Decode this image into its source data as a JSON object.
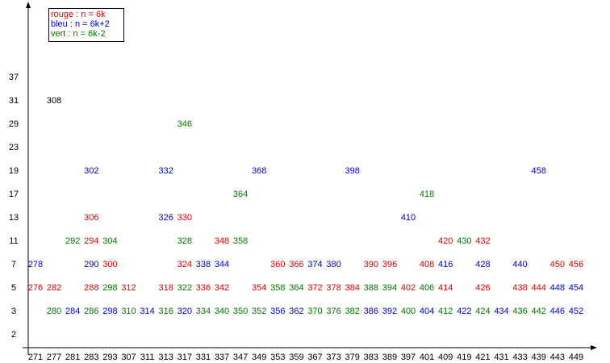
{
  "legend": [
    {
      "text": "rouge : n = 6k",
      "color": "#e00000"
    },
    {
      "text": "bleu   : n = 6k+2",
      "color": "#0000c8"
    },
    {
      "text": "vert    : n = 6k-2",
      "color": "#007800"
    }
  ],
  "x_labels": [
    "271",
    "277",
    "281",
    "283",
    "293",
    "307",
    "311",
    "313",
    "317",
    "331",
    "337",
    "347",
    "349",
    "353",
    "359",
    "367",
    "373",
    "379",
    "383",
    "389",
    "397",
    "401",
    "409",
    "419",
    "421",
    "431",
    "433",
    "439",
    "443",
    "449"
  ],
  "rows": [
    {
      "label": "37",
      "cells": [
        null,
        null,
        null,
        null,
        null,
        null,
        null,
        null,
        null,
        null,
        null,
        null,
        null,
        null,
        null,
        null,
        null,
        null,
        null,
        null,
        null,
        null,
        null,
        null,
        null,
        null,
        null,
        null,
        null,
        null
      ]
    },
    {
      "label": "31",
      "cells": [
        null,
        {
          "text": "308",
          "color": "#000000"
        },
        null,
        null,
        null,
        null,
        null,
        null,
        null,
        null,
        null,
        null,
        null,
        null,
        null,
        null,
        null,
        null,
        null,
        null,
        null,
        null,
        null,
        null,
        null,
        null,
        null,
        null,
        null,
        null
      ]
    },
    {
      "label": "29",
      "cells": [
        null,
        null,
        null,
        null,
        null,
        null,
        null,
        null,
        {
          "text": "346",
          "color": "#007800"
        },
        null,
        null,
        null,
        null,
        null,
        null,
        null,
        null,
        null,
        null,
        null,
        null,
        null,
        null,
        null,
        null,
        null,
        null,
        null,
        null,
        null
      ]
    },
    {
      "label": "23",
      "cells": [
        null,
        null,
        null,
        null,
        null,
        null,
        null,
        null,
        null,
        null,
        null,
        null,
        null,
        null,
        null,
        null,
        null,
        null,
        null,
        null,
        null,
        null,
        null,
        null,
        null,
        null,
        null,
        null,
        null,
        null
      ]
    },
    {
      "label": "19",
      "cells": [
        null,
        null,
        null,
        {
          "text": "302",
          "color": "#0000c8"
        },
        null,
        null,
        null,
        {
          "text": "332",
          "color": "#0000c8"
        },
        null,
        null,
        null,
        null,
        {
          "text": "368",
          "color": "#0000c8"
        },
        null,
        null,
        null,
        null,
        {
          "text": "398",
          "color": "#0000c8"
        },
        null,
        null,
        null,
        null,
        null,
        null,
        null,
        null,
        null,
        {
          "text": "458",
          "color": "#0000c8"
        },
        null,
        null
      ]
    },
    {
      "label": "17",
      "cells": [
        null,
        null,
        null,
        null,
        null,
        null,
        null,
        null,
        null,
        null,
        null,
        {
          "text": "364",
          "color": "#007800"
        },
        null,
        null,
        null,
        null,
        null,
        null,
        null,
        null,
        null,
        {
          "text": "418",
          "color": "#007800"
        },
        null,
        null,
        null,
        null,
        null,
        null,
        null,
        null
      ]
    },
    {
      "label": "13",
      "cells": [
        null,
        null,
        null,
        {
          "text": "306",
          "color": "#e00000"
        },
        null,
        null,
        null,
        {
          "text": "326",
          "color": "#0000c8"
        },
        {
          "text": "330",
          "color": "#e00000"
        },
        null,
        null,
        null,
        null,
        null,
        null,
        null,
        null,
        null,
        null,
        null,
        {
          "text": "410",
          "color": "#0000c8"
        },
        null,
        null,
        null,
        null,
        null,
        null,
        null,
        null,
        null
      ]
    },
    {
      "label": "11",
      "cells": [
        null,
        null,
        {
          "text": "292",
          "color": "#007800"
        },
        {
          "text": "294",
          "color": "#e00000"
        },
        {
          "text": "304",
          "color": "#007800"
        },
        null,
        null,
        null,
        {
          "text": "328",
          "color": "#007800"
        },
        null,
        {
          "text": "348",
          "color": "#e00000"
        },
        {
          "text": "358",
          "color": "#007800"
        },
        null,
        null,
        null,
        null,
        null,
        null,
        null,
        null,
        null,
        null,
        {
          "text": "420",
          "color": "#e00000"
        },
        {
          "text": "430",
          "color": "#007800"
        },
        {
          "text": "432",
          "color": "#e00000"
        },
        null,
        null,
        null,
        null,
        null
      ]
    },
    {
      "label": "7",
      "cells": [
        {
          "text": "278",
          "color": "#0000c8"
        },
        null,
        null,
        {
          "text": "290",
          "color": "#0000c8"
        },
        {
          "text": "300",
          "color": "#e00000"
        },
        null,
        null,
        null,
        {
          "text": "324",
          "color": "#e00000"
        },
        {
          "text": "338",
          "color": "#0000c8"
        },
        {
          "text": "344",
          "color": "#0000c8"
        },
        null,
        null,
        {
          "text": "360",
          "color": "#e00000"
        },
        {
          "text": "366",
          "color": "#e00000"
        },
        {
          "text": "374",
          "color": "#0000c8"
        },
        {
          "text": "380",
          "color": "#0000c8"
        },
        null,
        {
          "text": "390",
          "color": "#e00000"
        },
        {
          "text": "396",
          "color": "#e00000"
        },
        null,
        {
          "text": "408",
          "color": "#e00000"
        },
        {
          "text": "416",
          "color": "#0000c8"
        },
        null,
        {
          "text": "428",
          "color": "#0000c8"
        },
        null,
        {
          "text": "440",
          "color": "#0000c8"
        },
        null,
        {
          "text": "450",
          "color": "#e00000"
        },
        {
          "text": "456",
          "color": "#e00000"
        }
      ]
    },
    {
      "label": "5",
      "cells": [
        {
          "text": "276",
          "color": "#e00000"
        },
        {
          "text": "282",
          "color": "#e00000"
        },
        null,
        {
          "text": "288",
          "color": "#e00000"
        },
        {
          "text": "298",
          "color": "#007800"
        },
        {
          "text": "312",
          "color": "#e00000"
        },
        null,
        {
          "text": "318",
          "color": "#e00000"
        },
        {
          "text": "322",
          "color": "#007800"
        },
        {
          "text": "336",
          "color": "#e00000"
        },
        {
          "text": "342",
          "color": "#e00000"
        },
        null,
        {
          "text": "354",
          "color": "#e00000"
        },
        {
          "text": "358",
          "color": "#007800"
        },
        {
          "text": "364",
          "color": "#007800"
        },
        {
          "text": "372",
          "color": "#e00000"
        },
        {
          "text": "378",
          "color": "#e00000"
        },
        {
          "text": "384",
          "color": "#e00000"
        },
        {
          "text": "388",
          "color": "#007800"
        },
        {
          "text": "394",
          "color": "#007800"
        },
        {
          "text": "402",
          "color": "#e00000"
        },
        {
          "text": "406",
          "color": "#007800"
        },
        {
          "text": "414",
          "color": "#e00000"
        },
        null,
        {
          "text": "426",
          "color": "#e00000"
        },
        null,
        {
          "text": "438",
          "color": "#e00000"
        },
        {
          "text": "444",
          "color": "#e00000"
        },
        {
          "text": "448",
          "color": "#0000c8"
        },
        {
          "text": "454",
          "color": "#0000c8"
        }
      ]
    },
    {
      "label": "3",
      "cells": [
        null,
        {
          "text": "280",
          "color": "#007800"
        },
        {
          "text": "284",
          "color": "#0000c8"
        },
        {
          "text": "286",
          "color": "#007800"
        },
        {
          "text": "298",
          "color": "#0000c8"
        },
        {
          "text": "310",
          "color": "#007800"
        },
        {
          "text": "314",
          "color": "#0000c8"
        },
        {
          "text": "316",
          "color": "#007800"
        },
        {
          "text": "320",
          "color": "#0000c8"
        },
        {
          "text": "334",
          "color": "#007800"
        },
        {
          "text": "340",
          "color": "#007800"
        },
        {
          "text": "350",
          "color": "#007800"
        },
        {
          "text": "352",
          "color": "#007800"
        },
        {
          "text": "356",
          "color": "#0000c8"
        },
        {
          "text": "362",
          "color": "#0000c8"
        },
        {
          "text": "370",
          "color": "#007800"
        },
        {
          "text": "376",
          "color": "#007800"
        },
        {
          "text": "382",
          "color": "#007800"
        },
        {
          "text": "386",
          "color": "#0000c8"
        },
        {
          "text": "392",
          "color": "#0000c8"
        },
        {
          "text": "400",
          "color": "#007800"
        },
        {
          "text": "404",
          "color": "#0000c8"
        },
        {
          "text": "412",
          "color": "#007800"
        },
        {
          "text": "422",
          "color": "#0000c8"
        },
        {
          "text": "424",
          "color": "#007800"
        },
        {
          "text": "434",
          "color": "#0000c8"
        },
        {
          "text": "436",
          "color": "#007800"
        },
        {
          "text": "442",
          "color": "#007800"
        },
        {
          "text": "446",
          "color": "#0000c8"
        },
        {
          "text": "452",
          "color": "#0000c8"
        }
      ]
    },
    {
      "label": "2",
      "cells": [
        null,
        null,
        null,
        null,
        null,
        null,
        null,
        null,
        null,
        null,
        null,
        null,
        null,
        null,
        null,
        null,
        null,
        null,
        null,
        null,
        null,
        null,
        null,
        null,
        null,
        null,
        null,
        null,
        null,
        null
      ]
    }
  ]
}
